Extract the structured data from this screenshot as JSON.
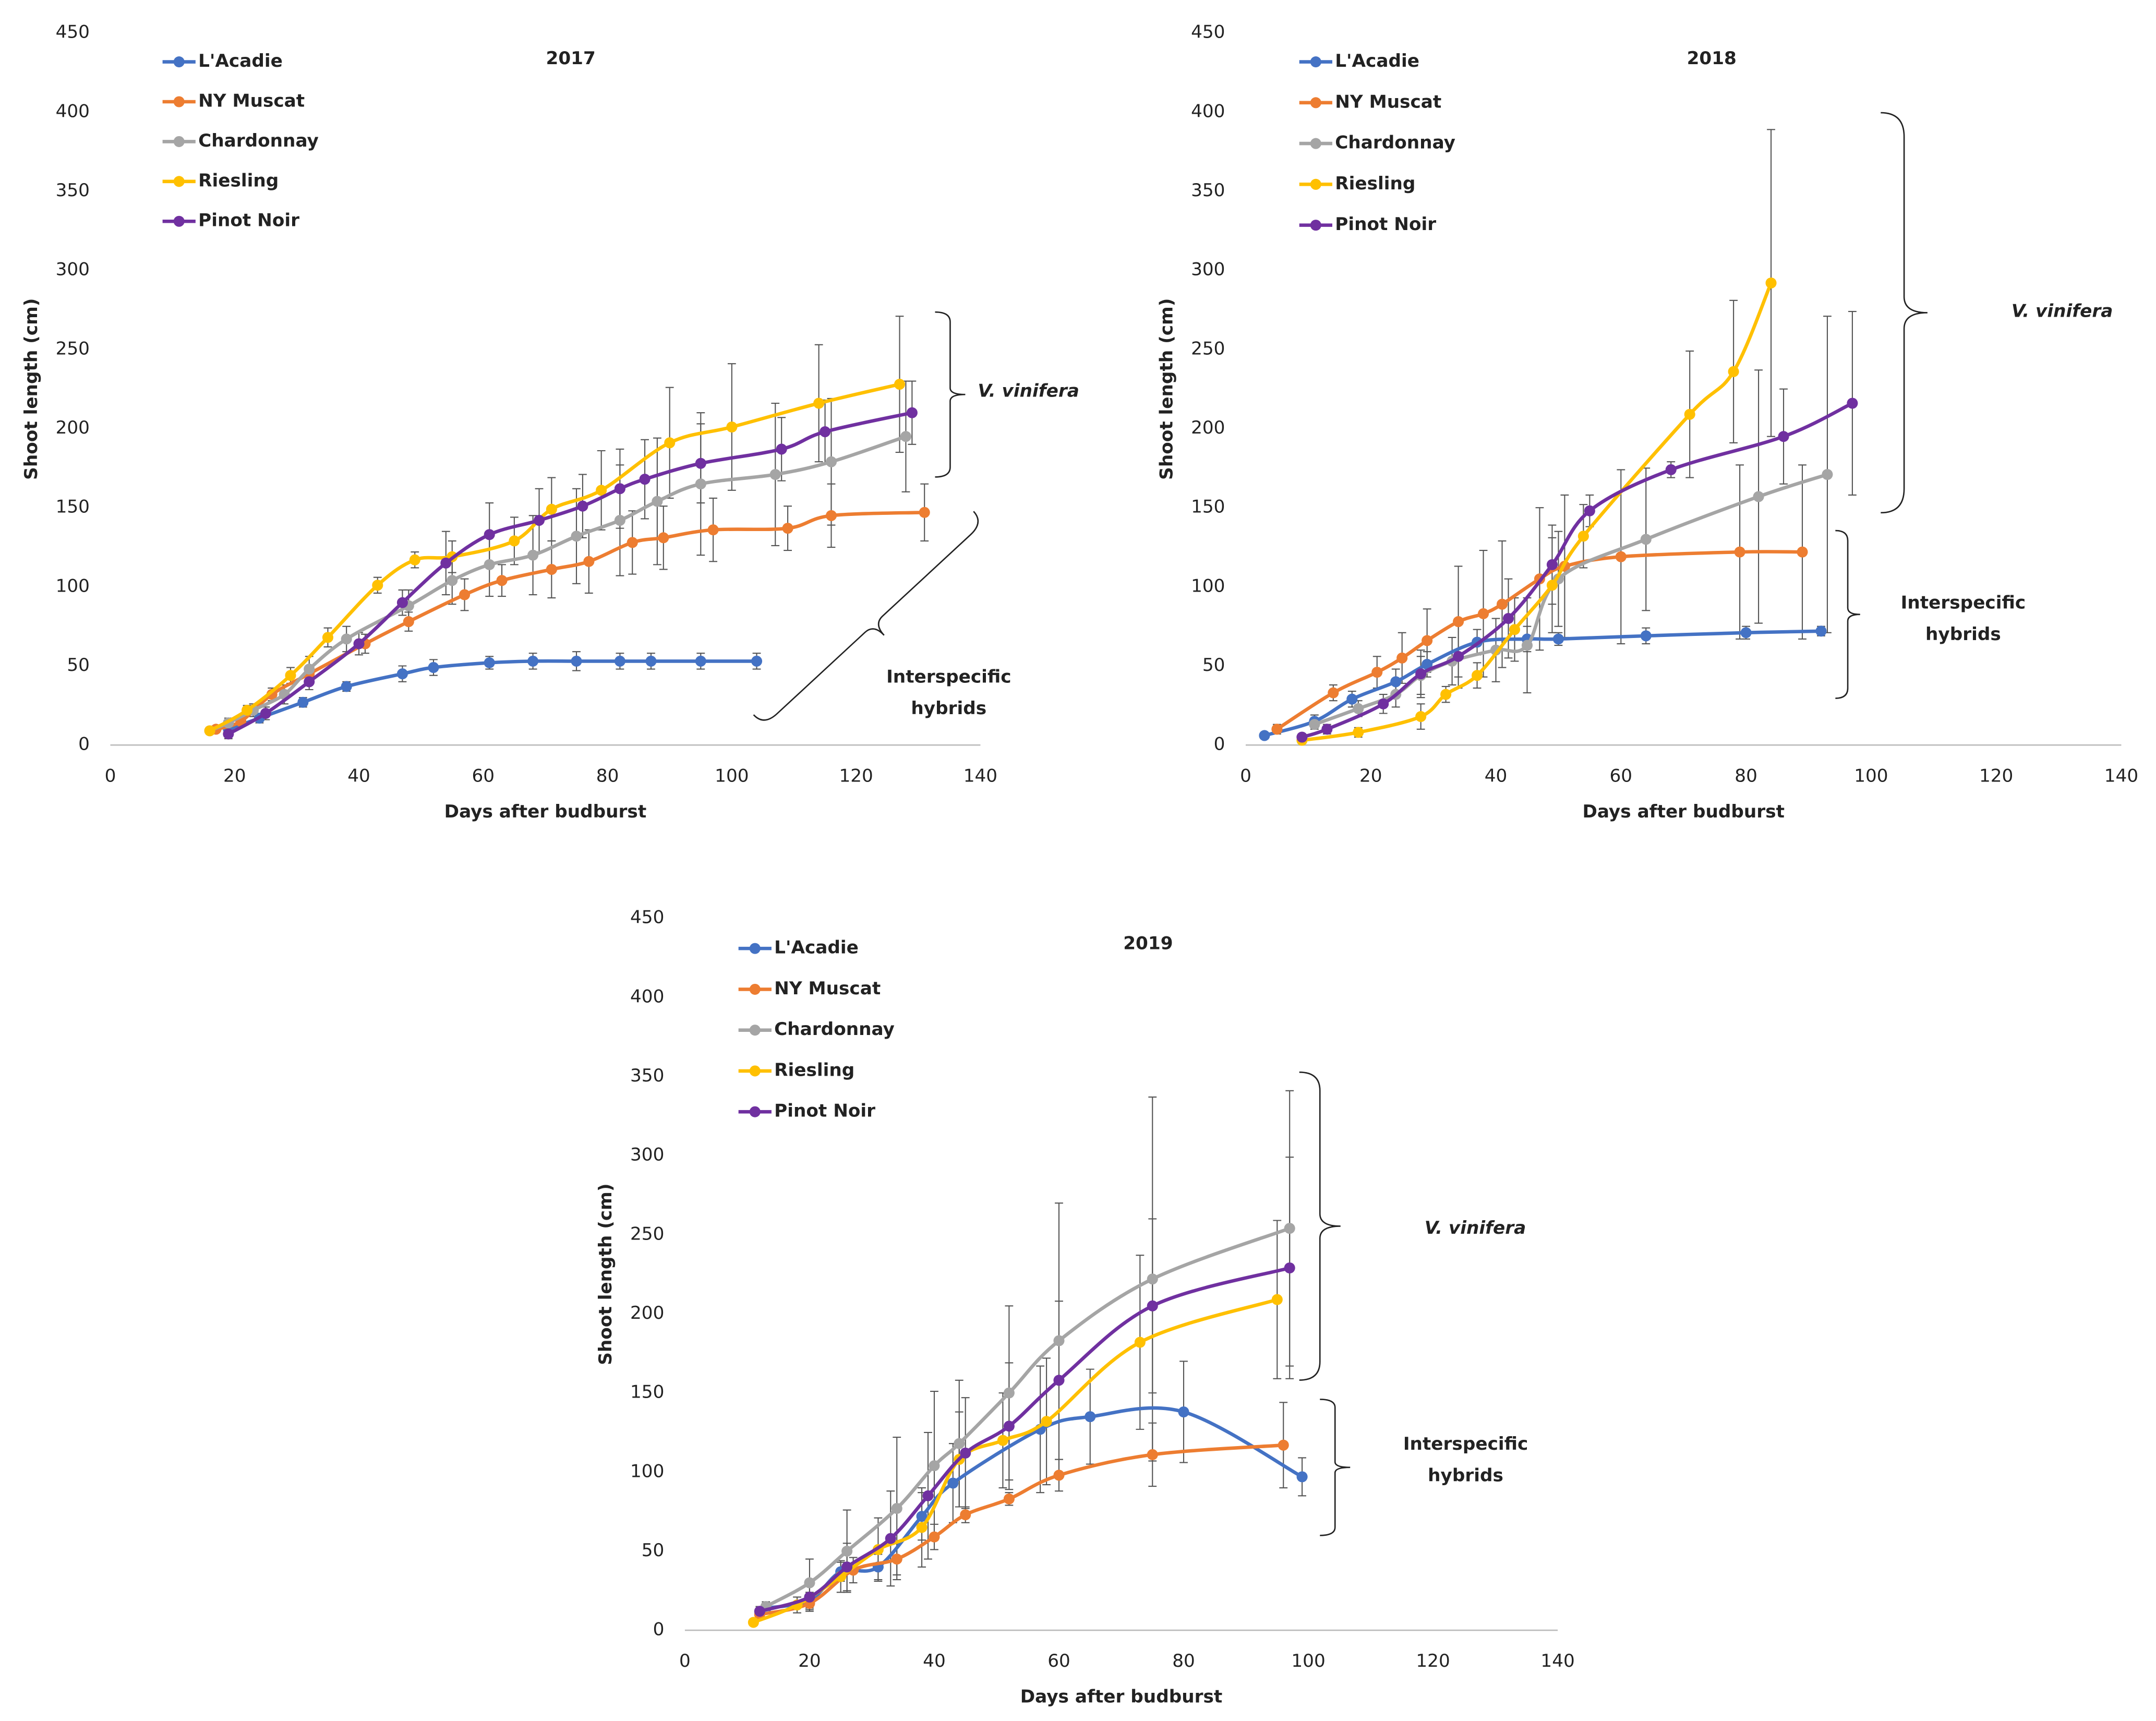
{
  "chart_data": [
    {
      "type": "line",
      "title": "2017",
      "x_label": "Days after budburst",
      "y_label": "Shoot length (cm)",
      "xlim": [
        0,
        140
      ],
      "xticks": [
        0,
        20,
        40,
        60,
        80,
        100,
        120,
        140
      ],
      "ylim": [
        0,
        450
      ],
      "yticks": [
        0,
        50,
        100,
        150,
        200,
        250,
        300,
        350,
        400,
        450
      ],
      "annotations": [
        "V. vinifera",
        "Interspecific",
        "hybrids"
      ],
      "series": [
        {
          "name": "L'Acadie",
          "color": "#4472c4",
          "x": [
            19,
            24,
            31,
            38,
            47,
            52,
            61,
            68,
            75,
            82,
            87,
            95,
            104
          ],
          "values": [
            10,
            17,
            27,
            37,
            45,
            49,
            52,
            53,
            53,
            53,
            53,
            53,
            53
          ],
          "errors": [
            2,
            3,
            3,
            3,
            5,
            5,
            4,
            5,
            6,
            5,
            5,
            5,
            5
          ]
        },
        {
          "name": "NY Muscat",
          "color": "#ed7d31",
          "x": [
            17,
            21,
            26,
            32,
            41,
            48,
            57,
            63,
            71,
            77,
            84,
            89,
            97,
            109,
            116,
            131
          ],
          "values": [
            10,
            15,
            32,
            45,
            64,
            78,
            95,
            104,
            111,
            116,
            128,
            131,
            136,
            137,
            145,
            147
          ],
          "errors": [
            2,
            3,
            4,
            5,
            6,
            6,
            10,
            10,
            18,
            20,
            20,
            20,
            20,
            14,
            20,
            18
          ]
        },
        {
          "name": "Chardonnay",
          "color": "#a5a5a5",
          "x": [
            16,
            19,
            23,
            28,
            32,
            38,
            48,
            55,
            61,
            68,
            75,
            82,
            88,
            95,
            107,
            116,
            128
          ],
          "values": [
            9,
            14,
            22,
            32,
            48,
            67,
            88,
            104,
            114,
            120,
            132,
            142,
            154,
            165,
            171,
            179,
            195
          ],
          "errors": [
            2,
            3,
            4,
            6,
            8,
            8,
            10,
            15,
            20,
            25,
            30,
            35,
            40,
            45,
            45,
            40,
            35
          ]
        },
        {
          "name": "Riesling",
          "color": "#ffc000",
          "x": [
            16,
            22,
            29,
            35,
            43,
            49,
            55,
            65,
            71,
            79,
            90,
            100,
            114,
            127
          ],
          "values": [
            9,
            22,
            44,
            68,
            101,
            117,
            119,
            129,
            149,
            161,
            191,
            201,
            216,
            228
          ],
          "errors": [
            2,
            3,
            5,
            6,
            5,
            5,
            10,
            15,
            20,
            25,
            35,
            40,
            37,
            43
          ]
        },
        {
          "name": "Pinot Noir",
          "color": "#7030a0",
          "x": [
            19,
            25,
            32,
            40,
            47,
            54,
            61,
            69,
            76,
            82,
            86,
            95,
            108,
            115,
            129
          ],
          "values": [
            7,
            20,
            40,
            64,
            90,
            115,
            133,
            142,
            151,
            162,
            168,
            178,
            187,
            198,
            210
          ],
          "errors": [
            3,
            4,
            5,
            7,
            8,
            20,
            20,
            20,
            20,
            25,
            25,
            25,
            20,
            20,
            20
          ]
        }
      ]
    },
    {
      "type": "line",
      "title": "2018",
      "x_label": "Days after budburst",
      "y_label": "Shoot length (cm)",
      "xlim": [
        0,
        140
      ],
      "xticks": [
        0,
        20,
        40,
        60,
        80,
        100,
        120,
        140
      ],
      "ylim": [
        0,
        450
      ],
      "yticks": [
        0,
        50,
        100,
        150,
        200,
        250,
        300,
        350,
        400,
        450
      ],
      "annotations": [
        "V. vinifera",
        "Interspecific",
        "hybrids"
      ],
      "series": [
        {
          "name": "L'Acadie",
          "color": "#4472c4",
          "x": [
            3,
            11,
            17,
            24,
            29,
            37,
            45,
            50,
            64,
            80,
            92
          ],
          "values": [
            6,
            15,
            29,
            40,
            51,
            65,
            67,
            67,
            69,
            71,
            72
          ],
          "errors": [
            2,
            4,
            5,
            8,
            8,
            8,
            8,
            4,
            5,
            4,
            3
          ]
        },
        {
          "name": "NY Muscat",
          "color": "#ed7d31",
          "x": [
            5,
            14,
            21,
            25,
            29,
            34,
            38,
            41,
            47,
            51,
            60,
            79,
            89
          ],
          "values": [
            10,
            33,
            46,
            55,
            66,
            78,
            83,
            89,
            105,
            113,
            119,
            122,
            122
          ],
          "errors": [
            3,
            5,
            10,
            16,
            20,
            35,
            40,
            40,
            45,
            45,
            55,
            55,
            55
          ]
        },
        {
          "name": "Chardonnay",
          "color": "#a5a5a5",
          "x": [
            11,
            18,
            24,
            28,
            33,
            40,
            45,
            50,
            64,
            82,
            93
          ],
          "values": [
            13,
            23,
            32,
            44,
            53,
            60,
            63,
            105,
            130,
            157,
            171
          ],
          "errors": [
            3,
            5,
            8,
            12,
            15,
            20,
            30,
            30,
            45,
            80,
            100
          ]
        },
        {
          "name": "Riesling",
          "color": "#ffc000",
          "x": [
            9,
            18,
            28,
            32,
            37,
            43,
            49,
            54,
            71,
            78,
            84
          ],
          "values": [
            3,
            8,
            18,
            32,
            44,
            73,
            101,
            132,
            209,
            236,
            292
          ],
          "errors": [
            2,
            3,
            8,
            5,
            8,
            20,
            30,
            20,
            40,
            45,
            97
          ]
        },
        {
          "name": "Pinot Noir",
          "color": "#7030a0",
          "x": [
            9,
            13,
            22,
            28,
            34,
            42,
            49,
            55,
            68,
            86,
            97
          ],
          "values": [
            5,
            10,
            26,
            45,
            56,
            80,
            114,
            148,
            174,
            195,
            216
          ],
          "errors": [
            2,
            3,
            6,
            15,
            20,
            25,
            25,
            10,
            5,
            30,
            58
          ]
        }
      ]
    },
    {
      "type": "line",
      "title": "2019",
      "x_label": "Days after budburst",
      "y_label": "Shoot length (cm)",
      "xlim": [
        0,
        140
      ],
      "xticks": [
        0,
        20,
        40,
        60,
        80,
        100,
        120,
        140
      ],
      "ylim": [
        0,
        450
      ],
      "yticks": [
        0,
        50,
        100,
        150,
        200,
        250,
        300,
        350,
        400,
        450
      ],
      "annotations": [
        "V. vinifera",
        "Interspecific",
        "hybrids"
      ],
      "series": [
        {
          "name": "L'Acadie",
          "color": "#4472c4",
          "x": [
            13,
            20,
            25,
            31,
            38,
            43,
            57,
            65,
            80,
            99
          ],
          "values": [
            14,
            19,
            37,
            40,
            72,
            93,
            127,
            135,
            138,
            97
          ],
          "errors": [
            3,
            5,
            6,
            8,
            15,
            25,
            40,
            30,
            32,
            12
          ]
        },
        {
          "name": "NY Muscat",
          "color": "#ed7d31",
          "x": [
            12,
            20,
            27,
            34,
            40,
            45,
            52,
            60,
            75,
            96
          ],
          "values": [
            10,
            17,
            38,
            45,
            59,
            73,
            83,
            98,
            111,
            117
          ],
          "errors": [
            3,
            5,
            8,
            10,
            8,
            5,
            4,
            10,
            20,
            27
          ]
        },
        {
          "name": "Chardonnay",
          "color": "#a5a5a5",
          "x": [
            13,
            20,
            26,
            34,
            40,
            44,
            52,
            60,
            75,
            97
          ],
          "values": [
            15,
            30,
            50,
            77,
            104,
            118,
            150,
            183,
            222,
            254
          ],
          "errors": [
            3,
            15,
            26,
            45,
            47,
            40,
            55,
            87,
            115,
            87
          ]
        },
        {
          "name": "Riesling",
          "color": "#ffc000",
          "x": [
            11,
            18,
            25,
            31,
            38,
            44,
            51,
            58,
            73,
            95
          ],
          "values": [
            5,
            16,
            34,
            51,
            65,
            108,
            120,
            132,
            182,
            209
          ],
          "errors": [
            2,
            5,
            10,
            20,
            25,
            30,
            30,
            40,
            55,
            50
          ]
        },
        {
          "name": "Pinot Noir",
          "color": "#7030a0",
          "x": [
            12,
            20,
            26,
            33,
            39,
            45,
            52,
            60,
            75,
            97
          ],
          "values": [
            12,
            21,
            40,
            58,
            85,
            112,
            129,
            158,
            205,
            229
          ],
          "errors": [
            3,
            8,
            15,
            30,
            40,
            35,
            40,
            50,
            55,
            70
          ]
        }
      ]
    }
  ]
}
